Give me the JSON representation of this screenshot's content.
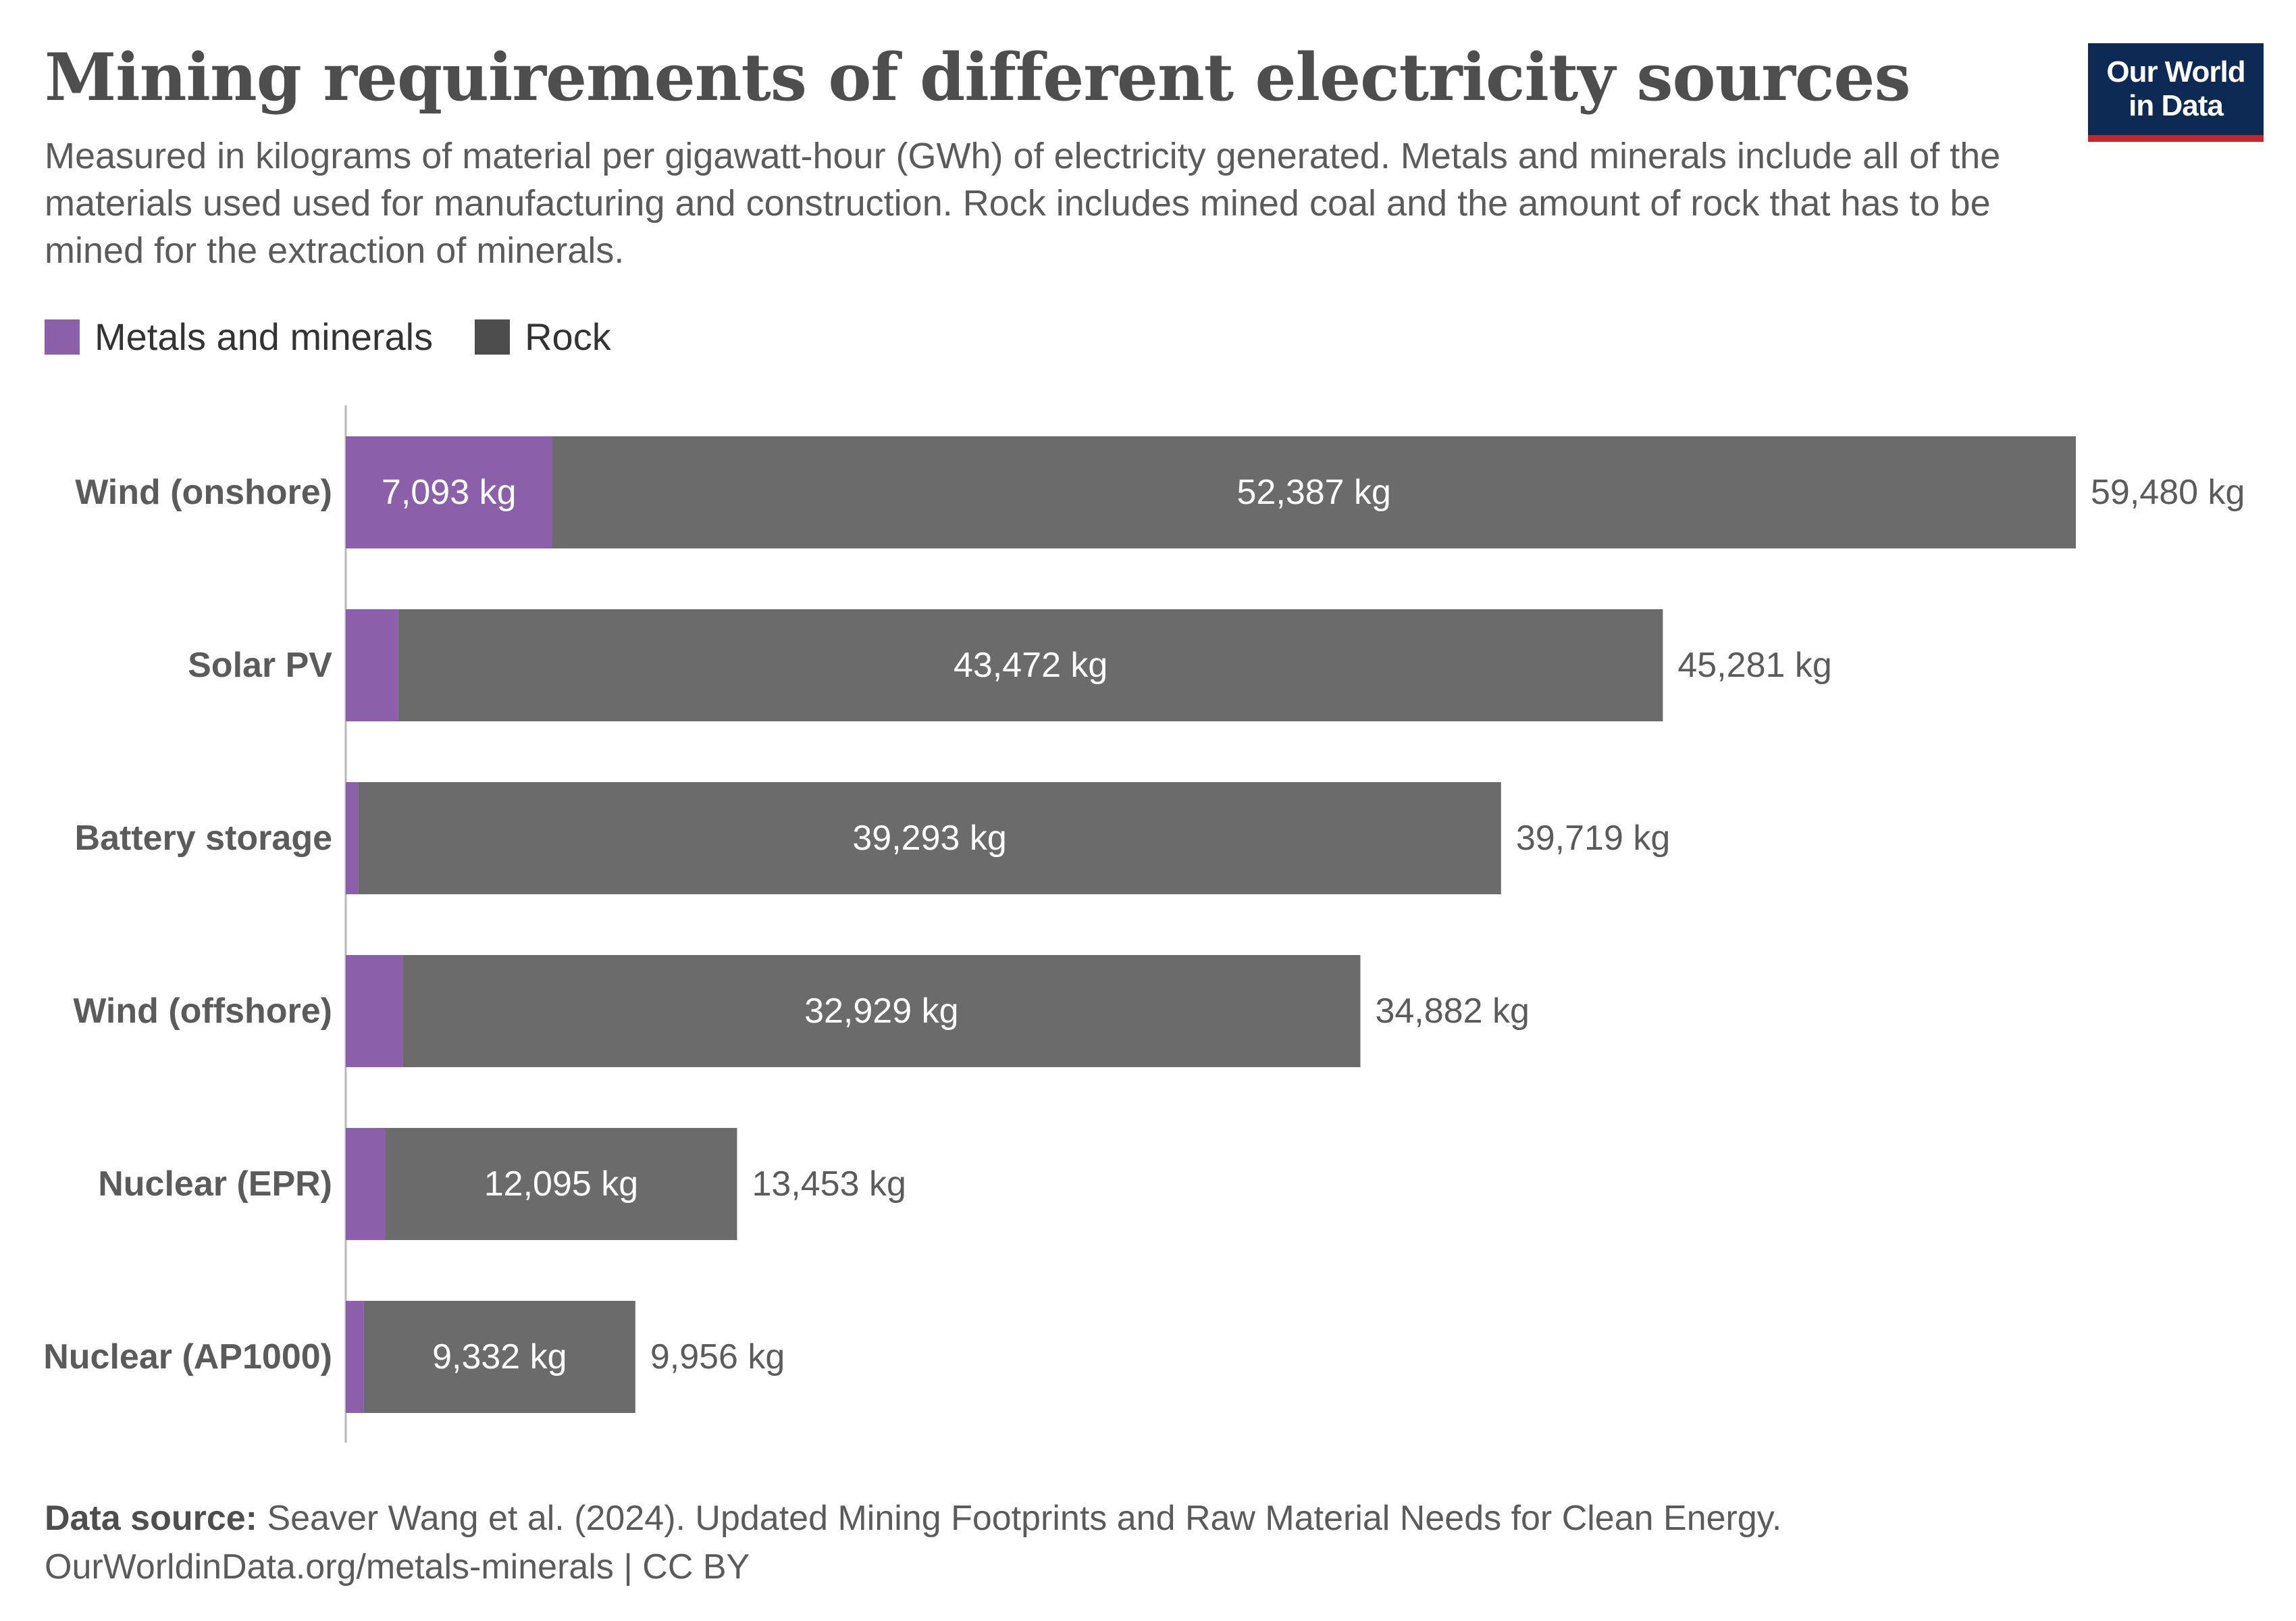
{
  "header": {
    "title": "Mining requirements of different electricity sources",
    "subtitle": "Measured in kilograms of material per gigawatt-hour (GWh) of electricity generated. Metals and minerals include all of the materials used used for manufacturing and construction. Rock includes mined coal and the amount of rock that has to be mined for the extraction of minerals."
  },
  "logo": {
    "line1": "Our World",
    "line2": "in Data"
  },
  "legend": [
    {
      "label": "Metals and minerals",
      "color": "#8c5fab"
    },
    {
      "label": "Rock",
      "color": "#6b6b6b"
    }
  ],
  "chart_data": {
    "type": "bar",
    "orientation": "horizontal",
    "stacked": true,
    "categories": [
      "Wind (onshore)",
      "Solar PV",
      "Battery storage",
      "Wind (offshore)",
      "Nuclear (EPR)",
      "Nuclear (AP1000)"
    ],
    "series": [
      {
        "name": "Metals and minerals",
        "color": "#8c5fab",
        "values": [
          7093,
          1809,
          426,
          1953,
          1358,
          624
        ]
      },
      {
        "name": "Rock",
        "color": "#6b6b6b",
        "values": [
          52387,
          43472,
          39293,
          32929,
          12095,
          9332
        ]
      }
    ],
    "totals": [
      59480,
      45281,
      39719,
      34882,
      13453,
      9956
    ],
    "segment_labels": {
      "Metals and minerals": [
        "7,093 kg",
        "",
        "",
        "",
        "",
        ""
      ],
      "Rock": [
        "52,387 kg",
        "43,472 kg",
        "39,293 kg",
        "32,929 kg",
        "12,095 kg",
        "9,332 kg"
      ]
    },
    "total_labels": [
      "59,480 kg",
      "45,281 kg",
      "39,719 kg",
      "34,882 kg",
      "13,453 kg",
      "9,956 kg"
    ],
    "xlim": [
      0,
      59480
    ],
    "grid": false,
    "legend_position": "top-left"
  },
  "footer": {
    "source_label": "Data source:",
    "source_text": " Seaver Wang et al. (2024). Updated Mining Footprints and Raw Material Needs for Clean Energy.",
    "url_license": "OurWorldinData.org/metals-minerals | CC BY"
  }
}
